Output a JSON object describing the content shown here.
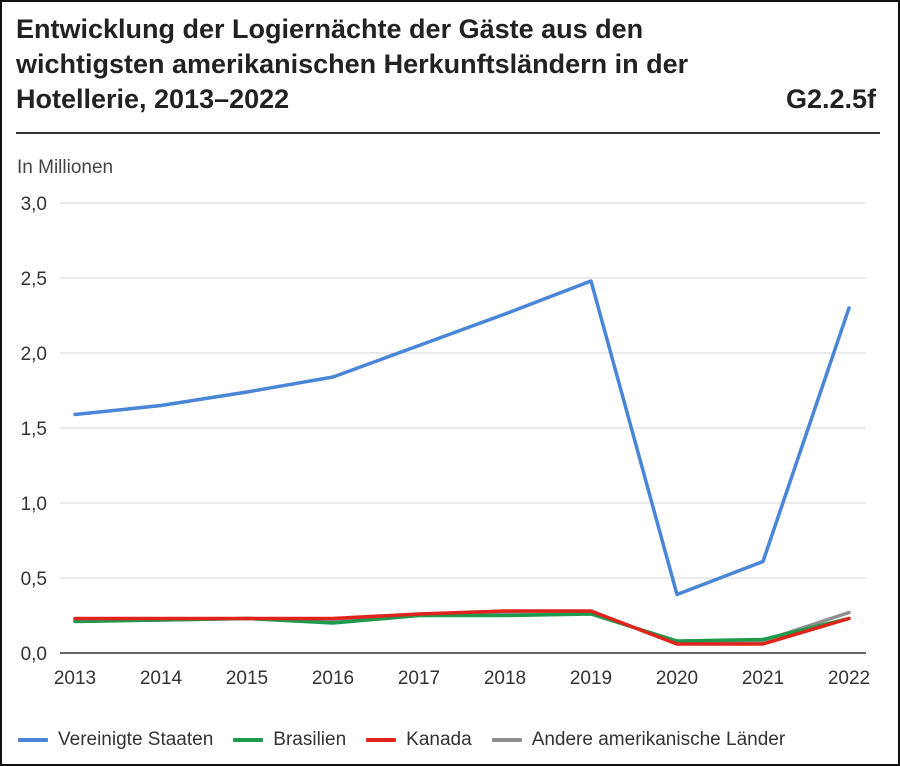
{
  "title": "Entwicklung der Logiernächte der Gäste aus den wichtigsten amerikanischen Herkunftsländern in der Hotellerie, 2013–2022",
  "figure_code": "G2.2.5f",
  "unit_label": "In Millionen",
  "chart_data": {
    "type": "line",
    "title": "Entwicklung der Logiernächte der Gäste aus den wichtigsten amerikanischen Herkunftsländern in der Hotellerie, 2013–2022",
    "xlabel": "",
    "ylabel": "In Millionen",
    "x": [
      "2013",
      "2014",
      "2015",
      "2016",
      "2017",
      "2018",
      "2019",
      "2020",
      "2021",
      "2022"
    ],
    "ylim": [
      0,
      3
    ],
    "yticks": [
      "0,0",
      "0,5",
      "1,0",
      "1,5",
      "2,0",
      "2,5",
      "3,0"
    ],
    "grid": true,
    "legend_position": "bottom",
    "series": [
      {
        "name": "Vereinigte Staaten",
        "color": "#4a86d8",
        "values": [
          1.59,
          1.65,
          1.74,
          1.84,
          2.05,
          2.26,
          2.48,
          0.39,
          0.61,
          2.3
        ]
      },
      {
        "name": "Brasilien",
        "color": "#1e9a4c",
        "values": [
          0.21,
          0.22,
          0.23,
          0.2,
          0.25,
          0.25,
          0.26,
          0.08,
          0.09,
          0.23
        ]
      },
      {
        "name": "Kanada",
        "color": "#e0231c",
        "values": [
          0.23,
          0.23,
          0.23,
          0.23,
          0.26,
          0.28,
          0.28,
          0.06,
          0.06,
          0.23
        ]
      },
      {
        "name": "Andere amerikanische Länder",
        "color": "#8e8e8e",
        "values": [
          0.22,
          0.22,
          0.23,
          0.22,
          0.25,
          0.26,
          0.27,
          0.07,
          0.08,
          0.27
        ]
      }
    ]
  }
}
